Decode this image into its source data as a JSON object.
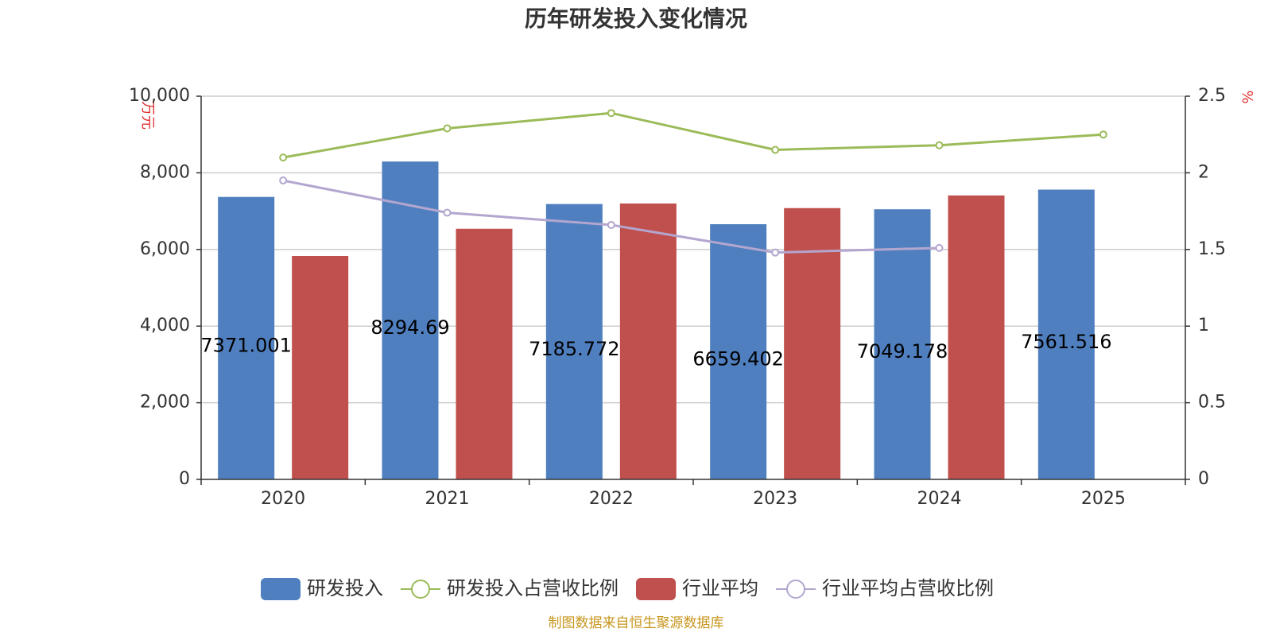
{
  "chart_data": {
    "type": "bar",
    "title": "历年研发投入变化情况",
    "categories": [
      "2020",
      "2021",
      "2022",
      "2023",
      "2024",
      "2025"
    ],
    "y_left": {
      "unit": "万元",
      "range": [
        0,
        10000
      ],
      "ticks": [
        "0",
        "2,000",
        "4,000",
        "6,000",
        "8,000",
        "10,000"
      ],
      "tick_values": [
        0,
        2000,
        4000,
        6000,
        8000,
        10000
      ]
    },
    "y_right": {
      "unit": "%",
      "range": [
        0,
        2.5
      ],
      "ticks": [
        "0",
        "0.5",
        "1",
        "1.5",
        "2",
        "2.5"
      ],
      "tick_values": [
        0,
        0.5,
        1,
        1.5,
        2,
        2.5
      ]
    },
    "series": [
      {
        "name": "研发投入",
        "kind": "bar",
        "axis": "left",
        "color": "#4f7fbf",
        "values": [
          7371.001,
          8294.69,
          7185.772,
          6659.402,
          7049.178,
          7561.516
        ],
        "labels": [
          "7371.001",
          "8294.69",
          "7185.772",
          "6659.402",
          "7049.178",
          "7561.516"
        ]
      },
      {
        "name": "研发投入占营收比例",
        "kind": "line",
        "axis": "right",
        "color": "#9bbb59",
        "values": [
          2.1,
          2.29,
          2.39,
          2.15,
          2.18,
          2.25
        ]
      },
      {
        "name": "行业平均",
        "kind": "bar",
        "axis": "left",
        "color": "#c0504d",
        "values": [
          5830,
          6540,
          7200,
          7080,
          7410,
          null
        ]
      },
      {
        "name": "行业平均占营收比例",
        "kind": "line",
        "axis": "right",
        "color": "#b3a6cf",
        "values": [
          1.95,
          1.74,
          1.66,
          1.48,
          1.51,
          null
        ]
      }
    ],
    "grid": true,
    "legend_position": "bottom",
    "source": "制图数据来自恒生聚源数据库"
  }
}
